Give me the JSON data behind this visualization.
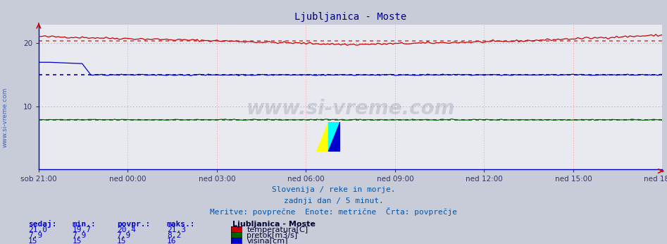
{
  "title": "Ljubljanica - Moste",
  "title_color": "#000080",
  "outer_bg_color": "#c8ccd8",
  "plot_bg_color": "#e8eaf0",
  "x_labels": [
    "sob 21:00",
    "ned 00:00",
    "ned 03:00",
    "ned 06:00",
    "ned 09:00",
    "ned 12:00",
    "ned 15:00",
    "ned 18:00"
  ],
  "ylim": [
    0,
    23
  ],
  "yticks": [
    10,
    20
  ],
  "temp_color": "#cc0000",
  "temp_avg_color": "#dd4444",
  "pretok_color": "#006600",
  "visina_color": "#0000cc",
  "temp_avg_value": 20.4,
  "pretok_avg_value": 7.9,
  "visina_avg_value": 15.0,
  "n_points": 288,
  "watermark": "www.si-vreme.com",
  "subtitle1": "Slovenija / reke in morje.",
  "subtitle2": "zadnji dan / 5 minut.",
  "subtitle3": "Meritve: povprečne  Enote: metrične  Črta: povprečje",
  "legend_title": "Ljubljanica - Moste",
  "legend_items": [
    "temperatura[C]",
    "pretok[m3/s]",
    "višina[cm]"
  ],
  "legend_colors": [
    "#cc0000",
    "#006600",
    "#0000cc"
  ],
  "table_headers": [
    "sedaj:",
    "min.:",
    "povpr.:",
    "maks.:"
  ],
  "table_data": [
    [
      "21,0",
      "19,7",
      "20,4",
      "21,3"
    ],
    [
      "7,9",
      "7,9",
      "7,9",
      "8,2"
    ],
    [
      "15",
      "15",
      "15",
      "16"
    ]
  ],
  "table_color": "#0000cc",
  "left_label": "www.si-vreme.com"
}
